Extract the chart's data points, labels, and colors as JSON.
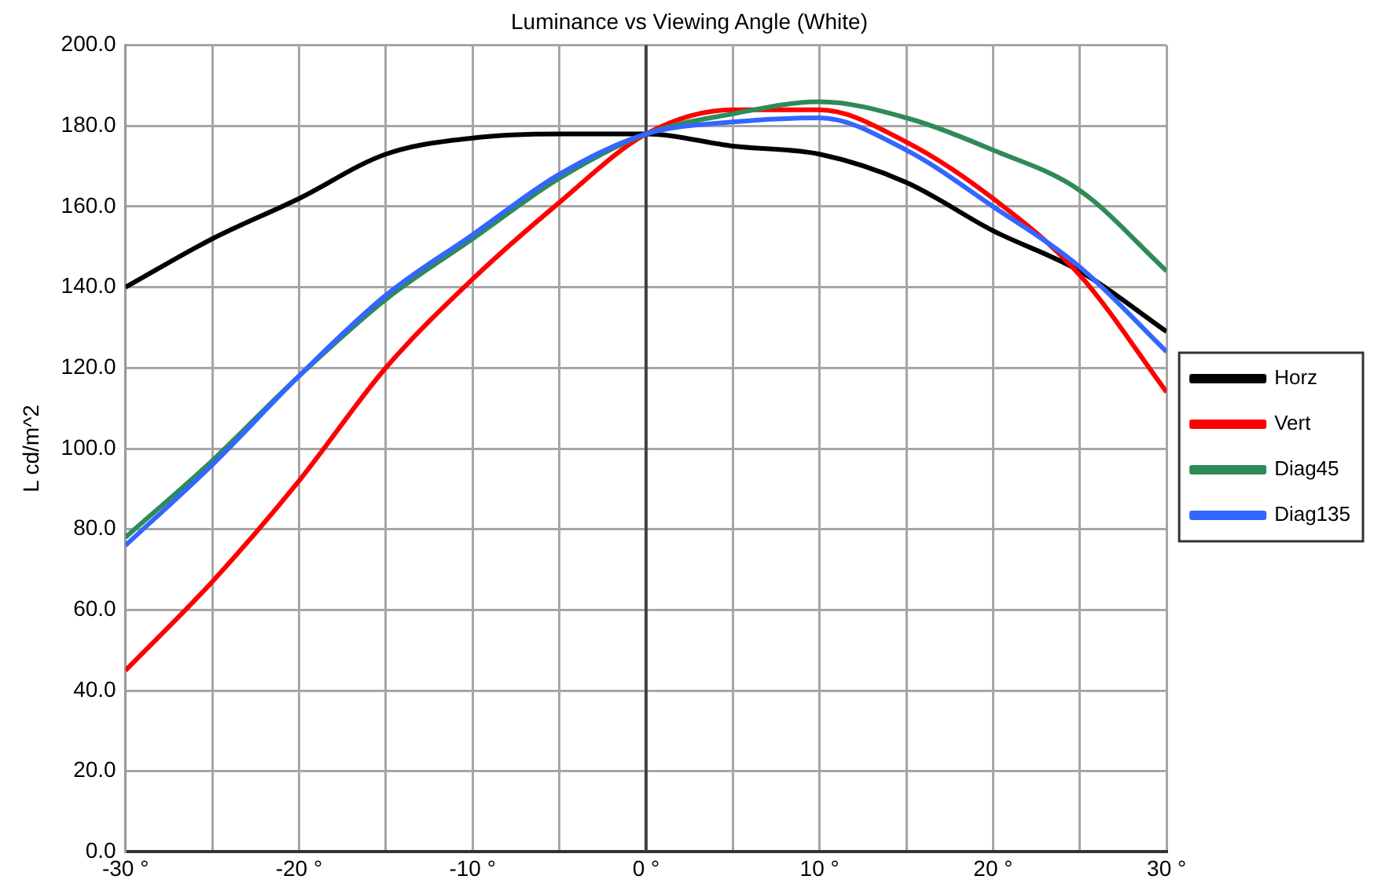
{
  "chart_data": {
    "type": "line",
    "title": "Luminance vs Viewing Angle (White)",
    "ylabel": "L cd/m^2",
    "x": [
      -30,
      -25,
      -20,
      -15,
      -10,
      -5,
      0,
      5,
      10,
      15,
      20,
      25,
      30
    ],
    "series": [
      {
        "name": "Horz",
        "color": "#000000",
        "values": [
          140,
          152,
          162,
          173,
          177,
          178,
          178,
          175,
          173,
          166,
          154,
          144,
          129
        ]
      },
      {
        "name": "Vert",
        "color": "#ff0000",
        "values": [
          45,
          67,
          92,
          120,
          142,
          161,
          178,
          184,
          184,
          176,
          162,
          143,
          114
        ]
      },
      {
        "name": "Diag45",
        "color": "#2e8b57",
        "values": [
          78,
          97,
          118,
          137,
          152,
          167,
          178,
          183,
          186,
          182,
          174,
          164,
          144
        ]
      },
      {
        "name": "Diag135",
        "color": "#3366ff",
        "values": [
          76,
          96,
          118,
          138,
          153,
          168,
          178,
          181,
          182,
          174,
          160,
          145,
          124
        ]
      }
    ],
    "xlim": [
      -30,
      30
    ],
    "xticks": [
      {
        "value": -30,
        "label": "-30 °"
      },
      {
        "value": -25,
        "label": null
      },
      {
        "value": -20,
        "label": "-20 °"
      },
      {
        "value": -15,
        "label": null
      },
      {
        "value": -10,
        "label": "-10 °"
      },
      {
        "value": -5,
        "label": null
      },
      {
        "value": 0,
        "label": "0 °"
      },
      {
        "value": 5,
        "label": null
      },
      {
        "value": 10,
        "label": "10 °"
      },
      {
        "value": 15,
        "label": null
      },
      {
        "value": 20,
        "label": "20 °"
      },
      {
        "value": 25,
        "label": null
      },
      {
        "value": 30,
        "label": "30 °"
      }
    ],
    "ylim": [
      0,
      200
    ],
    "yticks": [
      {
        "value": 0,
        "label": "0.0"
      },
      {
        "value": 20,
        "label": "20.0"
      },
      {
        "value": 40,
        "label": "40.0"
      },
      {
        "value": 60,
        "label": "60.0"
      },
      {
        "value": 80,
        "label": "80.0"
      },
      {
        "value": 100,
        "label": "100.0"
      },
      {
        "value": 120,
        "label": "120.0"
      },
      {
        "value": 140,
        "label": "140.0"
      },
      {
        "value": 160,
        "label": "160.0"
      },
      {
        "value": 180,
        "label": "180.0"
      },
      {
        "value": 200,
        "label": "200.0"
      }
    ],
    "ref_lines": [
      {
        "axis": "x",
        "value": 0,
        "color": "#404040"
      }
    ],
    "grid": true,
    "legend": "right",
    "marker": "none",
    "line_style": "solid"
  }
}
